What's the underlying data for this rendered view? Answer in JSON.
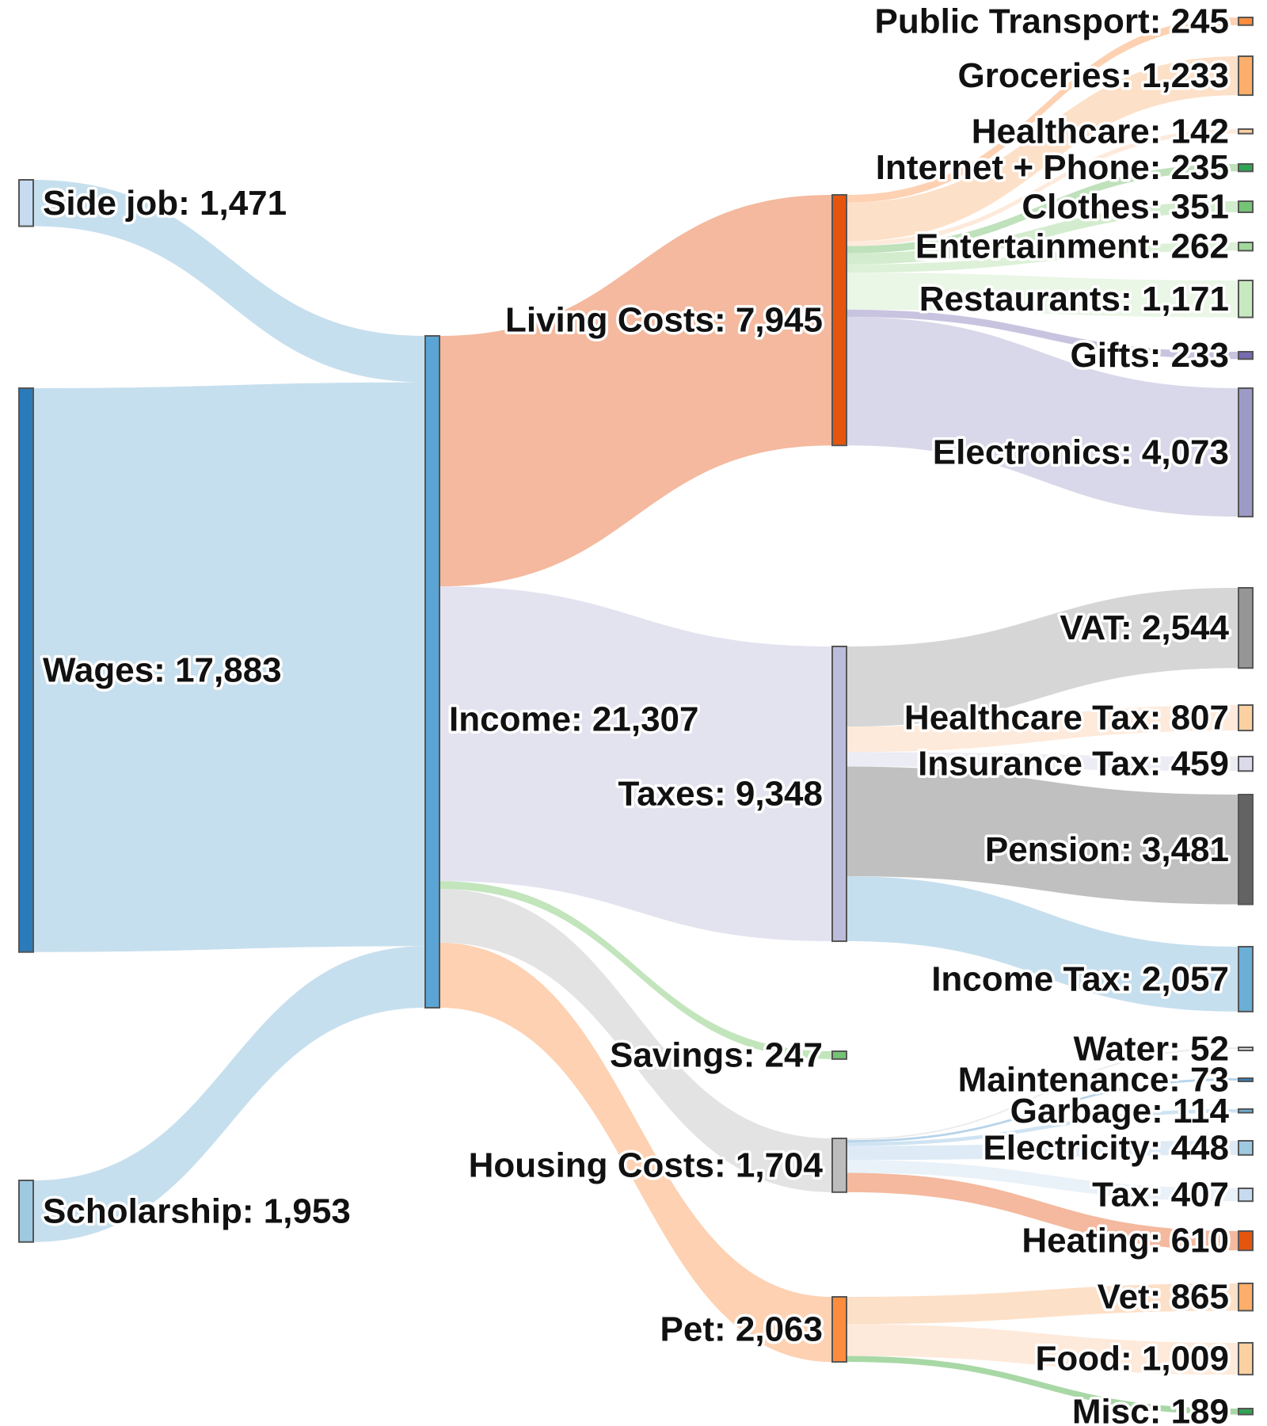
{
  "chart_data": {
    "type": "sankey",
    "title": "",
    "nodes": [
      {
        "id": "side_job",
        "name": "Side job",
        "value": 1471,
        "label": "Side job: 1,471",
        "color": "#c6dbef"
      },
      {
        "id": "wages",
        "name": "Wages",
        "value": 17883,
        "label": "Wages: 17,883",
        "color": "#2b7bba"
      },
      {
        "id": "scholarship",
        "name": "Scholarship",
        "value": 1953,
        "label": "Scholarship: 1,953",
        "color": "#9ecae1"
      },
      {
        "id": "income",
        "name": "Income",
        "value": 21307,
        "label": "Income: 21,307",
        "color": "#5aa5d6"
      },
      {
        "id": "living",
        "name": "Living Costs",
        "value": 7945,
        "label": "Living Costs: 7,945",
        "color": "#e6550d"
      },
      {
        "id": "taxes",
        "name": "Taxes",
        "value": 9348,
        "label": "Taxes: 9,348",
        "color": "#bcbddc"
      },
      {
        "id": "savings",
        "name": "Savings",
        "value": 247,
        "label": "Savings: 247",
        "color": "#74c476"
      },
      {
        "id": "housing",
        "name": "Housing Costs",
        "value": 1704,
        "label": "Housing Costs: 1,704",
        "color": "#bdbdbd"
      },
      {
        "id": "pet",
        "name": "Pet",
        "value": 2063,
        "label": "Pet: 2,063",
        "color": "#fd8d3c"
      },
      {
        "id": "public_transport",
        "name": "Public Transport",
        "value": 245,
        "label": "Public Transport: 245",
        "color": "#fd8d3c"
      },
      {
        "id": "groceries",
        "name": "Groceries",
        "value": 1233,
        "label": "Groceries: 1,233",
        "color": "#fdae6b"
      },
      {
        "id": "healthcare",
        "name": "Healthcare",
        "value": 142,
        "label": "Healthcare: 142",
        "color": "#fdd0a2"
      },
      {
        "id": "internet",
        "name": "Internet + Phone",
        "value": 235,
        "label": "Internet + Phone: 235",
        "color": "#31a354"
      },
      {
        "id": "clothes",
        "name": "Clothes",
        "value": 351,
        "label": "Clothes: 351",
        "color": "#74c476"
      },
      {
        "id": "entertainment",
        "name": "Entertainment",
        "value": 262,
        "label": "Entertainment: 262",
        "color": "#a1d99b"
      },
      {
        "id": "restaurants",
        "name": "Restaurants",
        "value": 1171,
        "label": "Restaurants: 1,171",
        "color": "#c7e9c0"
      },
      {
        "id": "gifts",
        "name": "Gifts",
        "value": 233,
        "label": "Gifts: 233",
        "color": "#756bb1"
      },
      {
        "id": "electronics",
        "name": "Electronics",
        "value": 4073,
        "label": "Electronics: 4,073",
        "color": "#9e9ac8"
      },
      {
        "id": "vat",
        "name": "VAT",
        "value": 2544,
        "label": "VAT: 2,544",
        "color": "#969696"
      },
      {
        "id": "healthcare_tax",
        "name": "Healthcare Tax",
        "value": 807,
        "label": "Healthcare Tax: 807",
        "color": "#fdd0a2"
      },
      {
        "id": "insurance_tax",
        "name": "Insurance Tax",
        "value": 459,
        "label": "Insurance Tax: 459",
        "color": "#dadaeb"
      },
      {
        "id": "pension",
        "name": "Pension",
        "value": 3481,
        "label": "Pension: 3,481",
        "color": "#636363"
      },
      {
        "id": "income_tax",
        "name": "Income Tax",
        "value": 2057,
        "label": "Income Tax: 2,057",
        "color": "#6baed6"
      },
      {
        "id": "water",
        "name": "Water",
        "value": 52,
        "label": "Water: 52",
        "color": "#d9d9d9"
      },
      {
        "id": "maintenance",
        "name": "Maintenance",
        "value": 73,
        "label": "Maintenance: 73",
        "color": "#3182bd"
      },
      {
        "id": "garbage",
        "name": "Garbage",
        "value": 114,
        "label": "Garbage: 114",
        "color": "#6baed6"
      },
      {
        "id": "electricity",
        "name": "Electricity",
        "value": 448,
        "label": "Electricity: 448",
        "color": "#9ecae1"
      },
      {
        "id": "tax_h",
        "name": "Tax",
        "value": 407,
        "label": "Tax: 407",
        "color": "#c6dbef"
      },
      {
        "id": "heating",
        "name": "Heating",
        "value": 610,
        "label": "Heating: 610",
        "color": "#e6550d"
      },
      {
        "id": "vet",
        "name": "Vet",
        "value": 865,
        "label": "Vet: 865",
        "color": "#fdae6b"
      },
      {
        "id": "food",
        "name": "Food",
        "value": 1009,
        "label": "Food: 1,009",
        "color": "#fdd0a2"
      },
      {
        "id": "misc",
        "name": "Misc",
        "value": 189,
        "label": "Misc: 189",
        "color": "#31a354"
      }
    ],
    "links": [
      {
        "source": "side_job",
        "target": "income",
        "value": 1471,
        "color": "#c6dfee"
      },
      {
        "source": "wages",
        "target": "income",
        "value": 17883,
        "color": "#c6dfee"
      },
      {
        "source": "scholarship",
        "target": "income",
        "value": 1953,
        "color": "#c6dfee"
      },
      {
        "source": "income",
        "target": "living",
        "value": 7945,
        "color": "#f4b99e"
      },
      {
        "source": "income",
        "target": "taxes",
        "value": 9348,
        "color": "#e3e3f0"
      },
      {
        "source": "income",
        "target": "savings",
        "value": 247,
        "color": "#c2e5bc"
      },
      {
        "source": "income",
        "target": "housing",
        "value": 1704,
        "color": "#e3e3e3"
      },
      {
        "source": "income",
        "target": "pet",
        "value": 2063,
        "color": "#fdd1b2"
      },
      {
        "source": "living",
        "target": "public_transport",
        "value": 245,
        "color": "#fdd1b2"
      },
      {
        "source": "living",
        "target": "groceries",
        "value": 1233,
        "color": "#fde0c8"
      },
      {
        "source": "living",
        "target": "healthcare",
        "value": 142,
        "color": "#feeadb"
      },
      {
        "source": "living",
        "target": "internet",
        "value": 235,
        "color": "#bfe1bb"
      },
      {
        "source": "living",
        "target": "clothes",
        "value": 351,
        "color": "#d3ecce"
      },
      {
        "source": "living",
        "target": "entertainment",
        "value": 262,
        "color": "#ddf0d8"
      },
      {
        "source": "living",
        "target": "restaurants",
        "value": 1171,
        "color": "#eaf6e6"
      },
      {
        "source": "living",
        "target": "gifts",
        "value": 233,
        "color": "#c8c4e0"
      },
      {
        "source": "living",
        "target": "electronics",
        "value": 4073,
        "color": "#d9d8ea"
      },
      {
        "source": "taxes",
        "target": "vat",
        "value": 2544,
        "color": "#d6d6d6"
      },
      {
        "source": "taxes",
        "target": "healthcare_tax",
        "value": 807,
        "color": "#feeadb"
      },
      {
        "source": "taxes",
        "target": "insurance_tax",
        "value": 459,
        "color": "#ececf4"
      },
      {
        "source": "taxes",
        "target": "pension",
        "value": 3481,
        "color": "#c0c0c0"
      },
      {
        "source": "taxes",
        "target": "income_tax",
        "value": 2057,
        "color": "#c6dfee"
      },
      {
        "source": "housing",
        "target": "water",
        "value": 52,
        "color": "#ececec"
      },
      {
        "source": "housing",
        "target": "maintenance",
        "value": 73,
        "color": "#b7d4ea"
      },
      {
        "source": "housing",
        "target": "garbage",
        "value": 114,
        "color": "#cfe3f2"
      },
      {
        "source": "housing",
        "target": "electricity",
        "value": 448,
        "color": "#deebf6"
      },
      {
        "source": "housing",
        "target": "tax_h",
        "value": 407,
        "color": "#e9f1f9"
      },
      {
        "source": "housing",
        "target": "heating",
        "value": 610,
        "color": "#f4b99e"
      },
      {
        "source": "pet",
        "target": "vet",
        "value": 865,
        "color": "#fde0c8"
      },
      {
        "source": "pet",
        "target": "food",
        "value": 1009,
        "color": "#feeadb"
      },
      {
        "source": "pet",
        "target": "misc",
        "value": 189,
        "color": "#a8d8a5"
      }
    ]
  }
}
